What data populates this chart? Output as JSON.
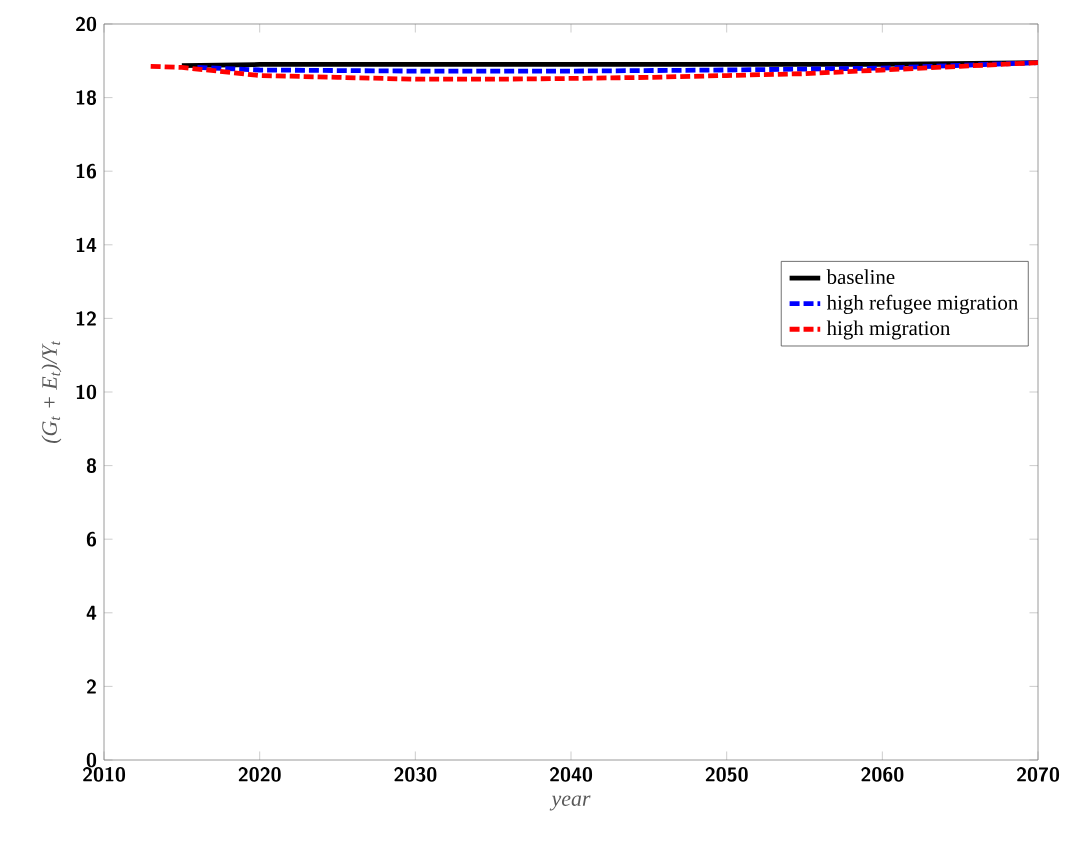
{
  "chart_data": {
    "type": "line",
    "xlabel": "year",
    "ylabel": "(G$_{t}$ + E$_{t}$)/Y$_{t}$",
    "xlim": [
      2010,
      2070
    ],
    "xticks": [
      2010,
      2020,
      2030,
      2040,
      2050,
      2060,
      2070
    ],
    "ylim": [
      0,
      20
    ],
    "yticks": [
      0,
      2,
      4,
      6,
      8,
      10,
      12,
      14,
      16,
      18,
      20
    ],
    "legend": "right",
    "grid": false,
    "series": [
      {
        "name": "baseline",
        "color": "#000000",
        "line_style": "solid",
        "x": [
          2015,
          2020,
          2030,
          2040,
          2050,
          2060,
          2070
        ],
        "values": [
          18.87,
          18.9,
          18.9,
          18.9,
          18.9,
          18.9,
          18.95
        ]
      },
      {
        "name": "high refugee migration",
        "color": "#0000ff",
        "line_style": "dashed",
        "x": [
          2016,
          2020,
          2030,
          2040,
          2050,
          2060,
          2070
        ],
        "values": [
          18.82,
          18.75,
          18.72,
          18.72,
          18.75,
          18.8,
          18.95
        ]
      },
      {
        "name": "high migration",
        "color": "#ff0000",
        "line_style": "dashed",
        "x": [
          2013,
          2015,
          2020,
          2025,
          2030,
          2035,
          2040,
          2045,
          2050,
          2055,
          2060,
          2065,
          2070
        ],
        "values": [
          18.85,
          18.82,
          18.6,
          18.55,
          18.5,
          18.5,
          18.52,
          18.55,
          18.6,
          18.65,
          18.75,
          18.85,
          18.95
        ]
      }
    ]
  }
}
